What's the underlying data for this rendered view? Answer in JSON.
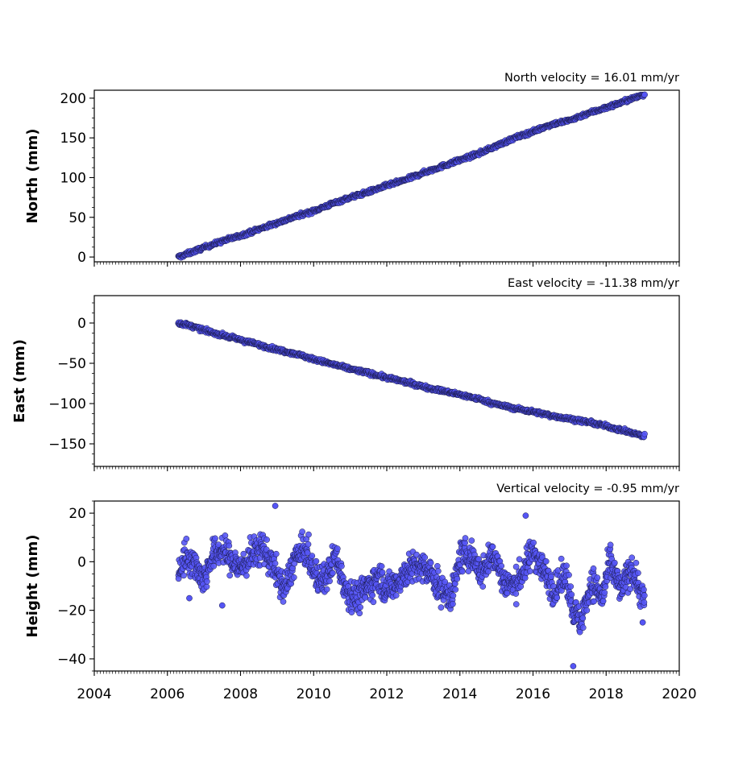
{
  "chart_data": [
    {
      "type": "scatter",
      "title": "North velocity = 16.01 mm/yr",
      "ylabel": "North (mm)",
      "xlabel": "",
      "xlim": [
        2004,
        2020
      ],
      "ylim": [
        -6,
        210
      ],
      "yticks": [
        0,
        50,
        100,
        150,
        200
      ],
      "ytick_labels": [
        "0",
        "50",
        "100",
        "150",
        "200"
      ],
      "xticks": [
        2004,
        2006,
        2008,
        2010,
        2012,
        2014,
        2016,
        2018,
        2020
      ],
      "xtick_labels": [],
      "grid": false,
      "series": [
        {
          "x": [
            2006.3,
            2006.6,
            2007.0,
            2007.5,
            2008.0,
            2008.5,
            2009.0,
            2009.5,
            2010.0,
            2010.5,
            2011.0,
            2011.5,
            2012.0,
            2012.5,
            2013.0,
            2013.5,
            2014.0,
            2014.5,
            2015.0,
            2015.5,
            2016.0,
            2016.5,
            2017.0,
            2017.5,
            2018.0,
            2018.5,
            2019.0
          ],
          "y": [
            0,
            5,
            12,
            20,
            27,
            35,
            43,
            51,
            58,
            67,
            75,
            82,
            90,
            97,
            106,
            114,
            122,
            130,
            140,
            150,
            158,
            167,
            172,
            181,
            188,
            196,
            204
          ]
        }
      ]
    },
    {
      "type": "scatter",
      "title": "East velocity = -11.38 mm/yr",
      "ylabel": "East (mm)",
      "xlabel": "",
      "xlim": [
        2004,
        2020
      ],
      "ylim": [
        -178,
        34
      ],
      "yticks": [
        0,
        -50,
        -100,
        -150
      ],
      "ytick_labels": [
        "0",
        "−50",
        "−100",
        "−150"
      ],
      "xticks": [
        2004,
        2006,
        2008,
        2010,
        2012,
        2014,
        2016,
        2018,
        2020
      ],
      "xtick_labels": [],
      "grid": false,
      "series": [
        {
          "x": [
            2006.3,
            2006.6,
            2007.0,
            2007.5,
            2008.0,
            2008.5,
            2009.0,
            2009.5,
            2010.0,
            2010.5,
            2011.0,
            2011.5,
            2012.0,
            2012.5,
            2013.0,
            2013.5,
            2014.0,
            2014.5,
            2015.0,
            2015.5,
            2016.0,
            2016.5,
            2017.0,
            2017.5,
            2018.0,
            2018.5,
            2019.0
          ],
          "y": [
            0,
            -3,
            -9,
            -15,
            -21,
            -27,
            -33,
            -38,
            -45,
            -51,
            -57,
            -62,
            -68,
            -73,
            -79,
            -84,
            -89,
            -94,
            -101,
            -106,
            -110,
            -115,
            -119,
            -123,
            -128,
            -134,
            -140
          ]
        }
      ]
    },
    {
      "type": "scatter",
      "title": "Vertical velocity = -0.95 mm/yr",
      "ylabel": "Height (mm)",
      "xlabel": "",
      "xlim": [
        2004,
        2020
      ],
      "ylim": [
        -45,
        25
      ],
      "yticks": [
        20,
        0,
        -20,
        -40
      ],
      "ytick_labels": [
        "20",
        "0",
        "−20",
        "−40"
      ],
      "xticks": [
        2004,
        2006,
        2008,
        2010,
        2012,
        2014,
        2016,
        2018,
        2020
      ],
      "xtick_labels": [
        "2004",
        "2006",
        "2008",
        "2010",
        "2012",
        "2014",
        "2016",
        "2018",
        "2020"
      ],
      "grid": false,
      "series": [
        {
          "x": [
            2006.3,
            2006.5,
            2006.8,
            2007.0,
            2007.2,
            2007.5,
            2007.8,
            2008.0,
            2008.3,
            2008.6,
            2008.9,
            2009.2,
            2009.5,
            2009.8,
            2010.0,
            2010.3,
            2010.6,
            2010.9,
            2011.2,
            2011.5,
            2011.8,
            2012.0,
            2012.3,
            2012.6,
            2012.9,
            2013.2,
            2013.5,
            2013.8,
            2014.0,
            2014.3,
            2014.6,
            2014.9,
            2015.2,
            2015.5,
            2015.8,
            2016.0,
            2016.3,
            2016.6,
            2016.9,
            2017.1,
            2017.3,
            2017.6,
            2017.9,
            2018.1,
            2018.4,
            2018.7,
            2019.0,
            2008.95,
            2017.1,
            2006.6,
            2007.5,
            2015.8,
            2019.0
          ],
          "y": [
            -5,
            3,
            -2,
            -8,
            2,
            5,
            0,
            -3,
            3,
            6,
            -2,
            -12,
            2,
            5,
            -5,
            -8,
            3,
            -12,
            -15,
            -10,
            -6,
            -12,
            -8,
            -3,
            -2,
            -5,
            -12,
            -14,
            2,
            3,
            -5,
            4,
            -8,
            -10,
            -2,
            5,
            -4,
            -12,
            -5,
            -20,
            -25,
            -8,
            -15,
            0,
            -12,
            -2,
            -15,
            23,
            -43,
            -15,
            -18,
            19,
            -25
          ]
        }
      ]
    }
  ],
  "colors": {
    "marker_fill": "#5555f5",
    "marker_edge": "#1a1a4a",
    "axis": "#000000"
  }
}
